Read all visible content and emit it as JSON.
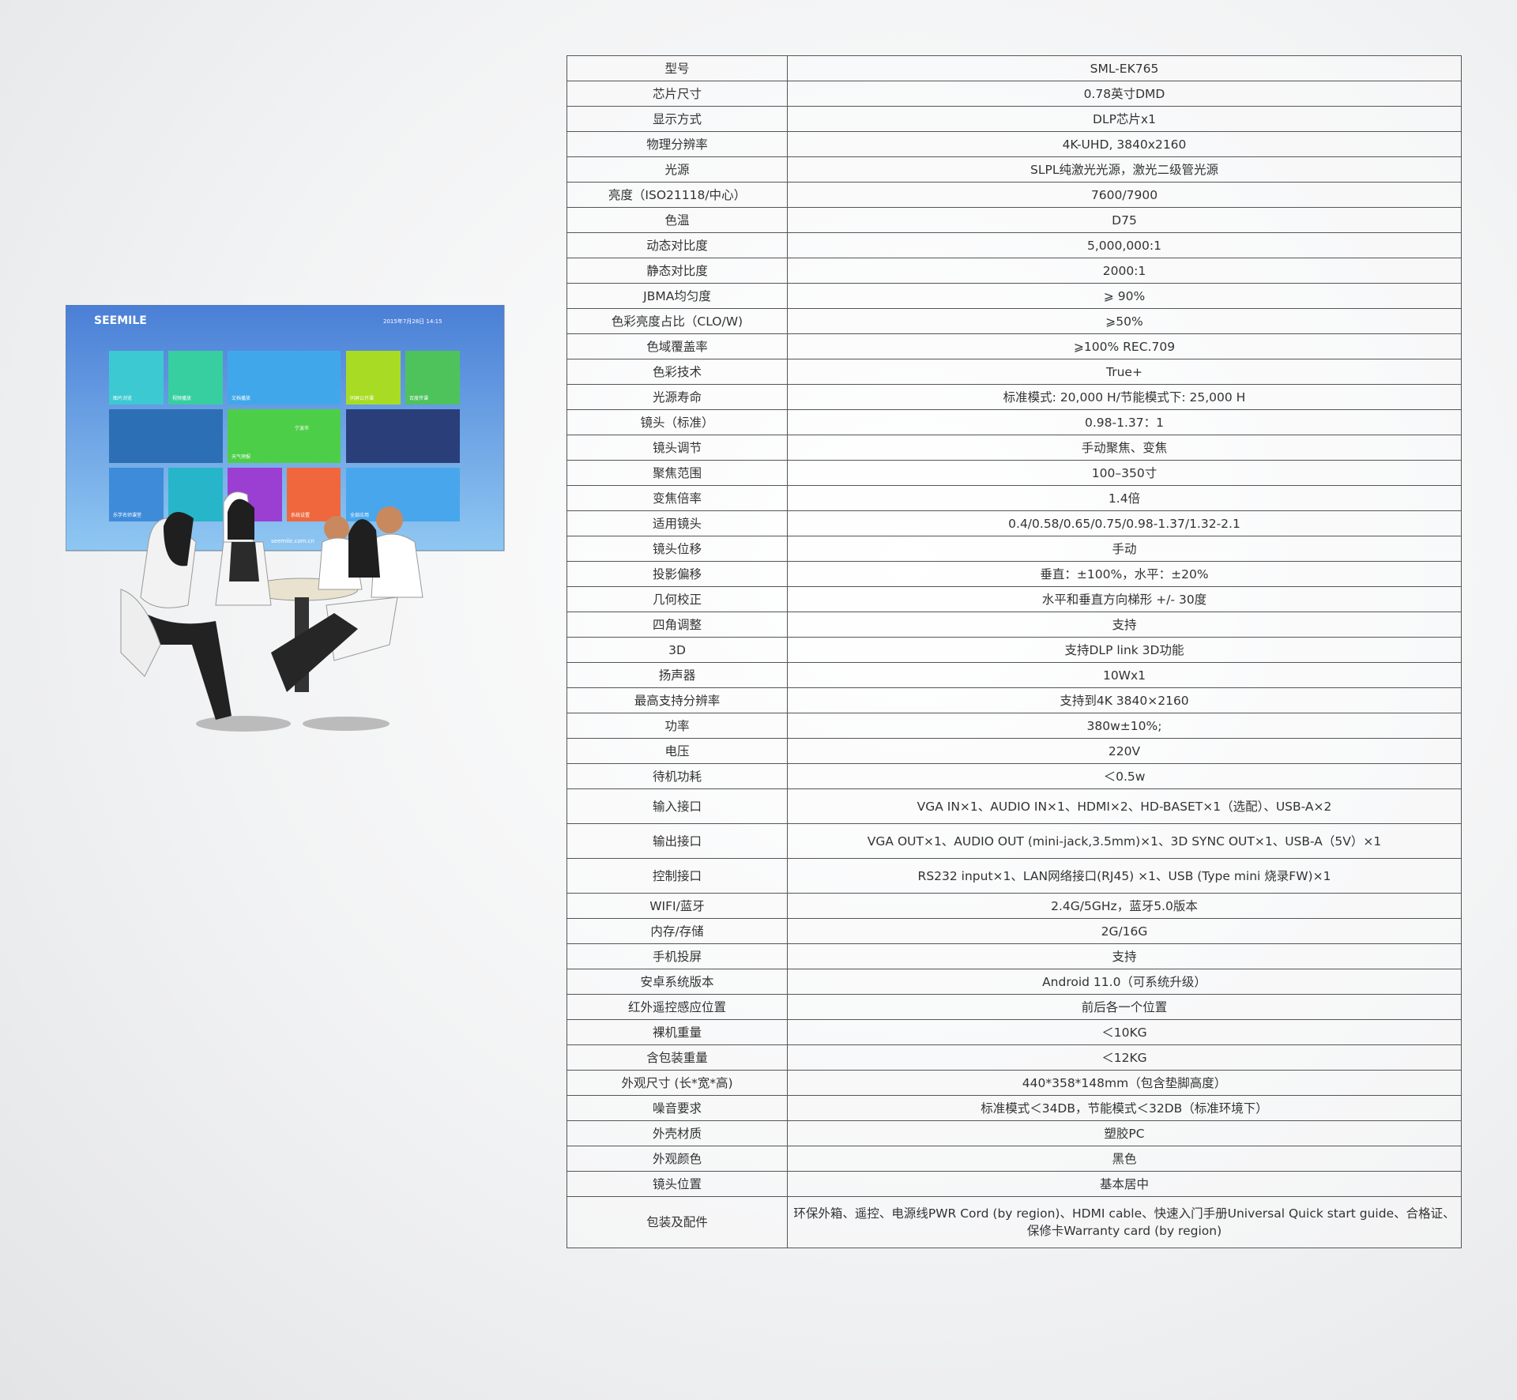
{
  "screen": {
    "brand": "SEEMILE",
    "datetime": "2015年7月28日  14:15",
    "tiles": [
      "图片浏览",
      "视频播放",
      "文档播放",
      "同屏公开课",
      "百度传课",
      "天气预报",
      "宁波市",
      "乐学名师课堂",
      "系统设置",
      "全部应用"
    ],
    "url": "seemile.com.cn"
  },
  "table": {
    "rows": [
      [
        "型号",
        "SML-EK765"
      ],
      [
        "芯片尺寸",
        "0.78英寸DMD"
      ],
      [
        "显示方式",
        "DLP芯片x1"
      ],
      [
        "物理分辨率",
        "4K-UHD, 3840x2160"
      ],
      [
        "光源",
        "SLPL纯激光光源，激光二级管光源"
      ],
      [
        "亮度（ISO21118/中心）",
        "7600/7900"
      ],
      [
        "色温",
        "D75"
      ],
      [
        "动态对比度",
        "5,000,000:1"
      ],
      [
        "静态对比度",
        "2000:1"
      ],
      [
        "JBMA均匀度",
        "⩾ 90%"
      ],
      [
        "色彩亮度占比（CLO/W)",
        "⩾50%"
      ],
      [
        "色域覆盖率",
        "⩾100%  REC.709"
      ],
      [
        "色彩技术",
        "True+"
      ],
      [
        "光源寿命",
        "标准模式: 20,000 H/节能模式下: 25,000 H"
      ],
      [
        "镜头（标准）",
        "0.98-1.37：1"
      ],
      [
        "镜头调节",
        "手动聚焦、变焦"
      ],
      [
        "聚焦范围",
        "100–350寸"
      ],
      [
        "变焦倍率",
        "1.4倍"
      ],
      [
        "适用镜头",
        "0.4/0.58/0.65/0.75/0.98-1.37/1.32-2.1"
      ],
      [
        "镜头位移",
        "手动"
      ],
      [
        "投影偏移",
        "垂直：±100%，水平：±20%"
      ],
      [
        "几何校正",
        "水平和垂直方向梯形 +/- 30度"
      ],
      [
        "四角调整",
        "支持"
      ],
      [
        "3D",
        "支持DLP link 3D功能"
      ],
      [
        "扬声器",
        "10Wx1"
      ],
      [
        "最高支持分辨率",
        "支持到4K 3840×2160"
      ],
      [
        "功率",
        "380w±10%;"
      ],
      [
        "电压",
        "220V"
      ],
      [
        "待机功耗",
        "＜0.5w"
      ],
      [
        "输入接口",
        "VGA IN×1、AUDIO IN×1、HDMI×2、HD-BASET×1（选配）、USB-A×2"
      ],
      [
        "输出接口",
        "VGA OUT×1、AUDIO OUT (mini-jack,3.5mm)×1、3D SYNC OUT×1、USB-A（5V）×1"
      ],
      [
        "控制接口",
        "RS232 input×1、LAN网络接口(RJ45) ×1、USB (Type mini 烧录FW)×1"
      ],
      [
        "WIFI/蓝牙",
        "2.4G/5GHz，蓝牙5.0版本"
      ],
      [
        "内存/存储",
        "2G/16G"
      ],
      [
        "手机投屏",
        "支持"
      ],
      [
        "安卓系统版本",
        "Android 11.0（可系统升级）"
      ],
      [
        "红外遥控感应位置",
        "前后各一个位置"
      ],
      [
        "裸机重量",
        "＜10KG"
      ],
      [
        "含包装重量",
        "＜12KG"
      ],
      [
        "外观尺寸 (长*宽*高)",
        "440*358*148mm（包含垫脚高度）"
      ],
      [
        "噪音要求",
        "标准模式＜34DB，节能模式＜32DB（标准环境下）"
      ],
      [
        "外壳材质",
        "塑胶PC"
      ],
      [
        "外观颜色",
        "黑色"
      ],
      [
        "镜头位置",
        "基本居中"
      ],
      [
        "包装及配件",
        "环保外箱、遥控、电源线PWR Cord (by region)、HDMI cable、快速入门手册Universal Quick start guide、合格证、保修卡Warranty card (by region)"
      ]
    ]
  }
}
